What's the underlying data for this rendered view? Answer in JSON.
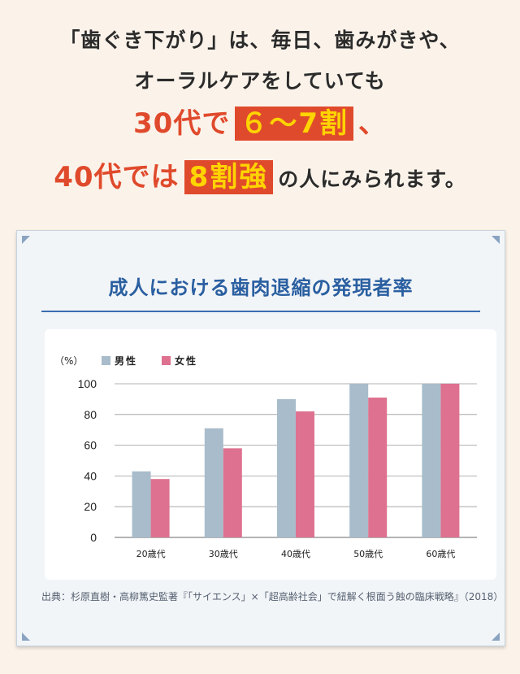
{
  "headline": {
    "line1": "「歯ぐき下がり」は、毎日、歯みがきや、",
    "line2": "オーラルケアをしていても",
    "line3_pre": "30代で",
    "line3_highlight": "６〜7割",
    "line3_post": "、",
    "line4_pre": "40代では",
    "line4_highlight": "8割強",
    "line4_post": "の人にみられます。"
  },
  "colors": {
    "male": "#a8bccb",
    "female": "#de7190",
    "accent_red": "#e04a2c",
    "highlight_text": "#ffd400",
    "title_blue": "#2a5fa0"
  },
  "chart_data": {
    "type": "bar",
    "title": "成人における歯肉退縮の発現者率",
    "unit_label": "（%）",
    "categories": [
      "20歳代",
      "30歳代",
      "40歳代",
      "50歳代",
      "60歳代"
    ],
    "series": [
      {
        "name": "男性",
        "values": [
          43,
          71,
          90,
          100,
          100
        ]
      },
      {
        "name": "女性",
        "values": [
          38,
          58,
          82,
          91,
          100
        ]
      }
    ],
    "ylim": [
      0,
      100
    ],
    "yticks": [
      0,
      20,
      40,
      60,
      80,
      100
    ],
    "grid": true,
    "legend_position": "top-left"
  },
  "source": "出典：杉原直樹・高柳篤史監著『「サイエンス」×「超高齢社会」で紐解く根面う蝕の臨床戦略』（2018）"
}
